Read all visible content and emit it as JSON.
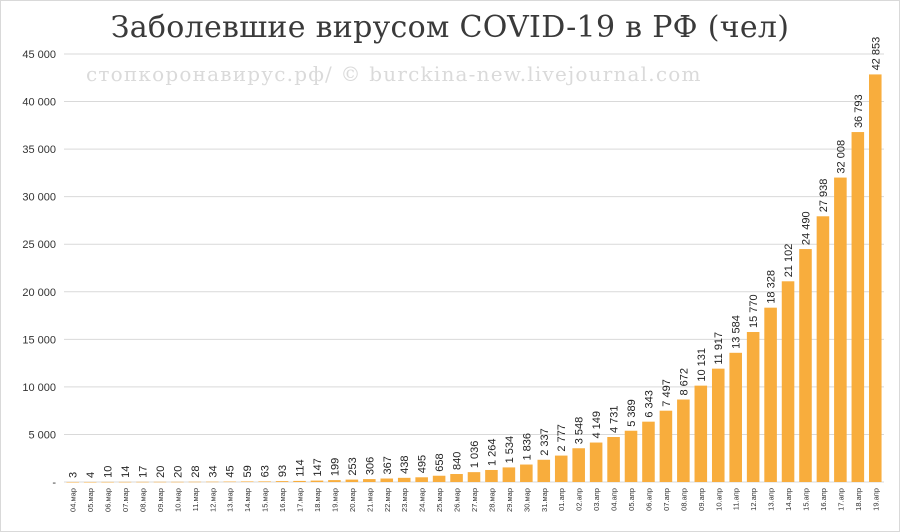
{
  "chart_data": {
    "type": "bar",
    "title": "Заболевшие вирусом COVID-19 в РФ (чел)",
    "watermark": "стопкоронавирус.рф/ © burckina-new.livejournal.com",
    "xlabel": "",
    "ylabel": "",
    "ylim": [
      0,
      45000
    ],
    "yticks": [
      "-",
      "5 000",
      "10 000",
      "15 000",
      "20 000",
      "25 000",
      "30 000",
      "35 000",
      "40 000",
      "45 000"
    ],
    "grid": true,
    "bar_color": "#F8AD3D",
    "grid_color": "#d9d9d9",
    "categories": [
      "04.мар",
      "05.мар",
      "06.мар",
      "07.мар",
      "08.мар",
      "09.мар",
      "10.мар",
      "11.мар",
      "12.мар",
      "13.мар",
      "14.мар",
      "15.мар",
      "16.мар",
      "17.мар",
      "18.мар",
      "19.мар",
      "20.мар",
      "21.мар",
      "22.мар",
      "23.мар",
      "24.мар",
      "25.мар",
      "26.мар",
      "27.мар",
      "28.мар",
      "29.мар",
      "30.мар",
      "31.мар",
      "01.апр",
      "02.апр",
      "03.апр",
      "04.апр",
      "05.апр",
      "06.апр",
      "07.апр",
      "08.апр",
      "09.апр",
      "10.апр",
      "11.апр",
      "12.апр",
      "13.апр",
      "14.апр",
      "15.апр",
      "16.апр",
      "17.апр",
      "18.апр",
      "19.апр"
    ],
    "values": [
      3,
      4,
      10,
      14,
      17,
      20,
      20,
      28,
      34,
      45,
      59,
      63,
      93,
      114,
      147,
      199,
      253,
      306,
      367,
      438,
      495,
      658,
      840,
      1036,
      1264,
      1534,
      1836,
      2337,
      2777,
      3548,
      4149,
      4731,
      5389,
      6343,
      7497,
      8672,
      10131,
      11917,
      13584,
      15770,
      18328,
      21102,
      24490,
      27938,
      32008,
      36793,
      42853
    ],
    "data_labels": [
      "3",
      "4",
      "10",
      "14",
      "17",
      "20",
      "20",
      "28",
      "34",
      "45",
      "59",
      "63",
      "93",
      "114",
      "147",
      "199",
      "253",
      "306",
      "367",
      "438",
      "495",
      "658",
      "840",
      "1 036",
      "1 264",
      "1 534",
      "1 836",
      "2 337",
      "2 777",
      "3 548",
      "4 149",
      "4 731",
      "5 389",
      "6 343",
      "7 497",
      "8 672",
      "10 131",
      "11 917",
      "13 584",
      "15 770",
      "18 328",
      "21 102",
      "24 490",
      "27 938",
      "32 008",
      "36 793",
      "42 853"
    ]
  }
}
